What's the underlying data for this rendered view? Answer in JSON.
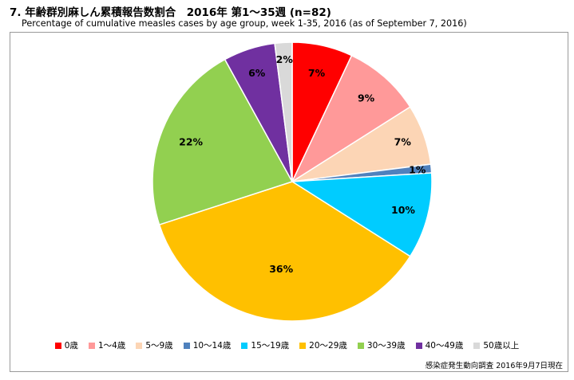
{
  "chart_data": {
    "type": "pie",
    "title": "7. 年齢群別麻しん累積報告数割合　2016年 第1～35週 (n=82)",
    "subtitle": "Percentage of cumulative measles cases by age group, week 1-35, 2016 (as of September 7, 2016)",
    "categories": [
      "0歳",
      "1～4歳",
      "5～9歳",
      "10～14歳",
      "15～19歳",
      "20～29歳",
      "30～39歳",
      "40～49歳",
      "50歳以上"
    ],
    "values": [
      7,
      9,
      7,
      1,
      10,
      36,
      22,
      6,
      2
    ],
    "data_labels": [
      "7%",
      "9%",
      "7%",
      "1%",
      "10%",
      "36%",
      "22%",
      "6%",
      "2%"
    ],
    "colors": [
      "#ff0000",
      "#ff9999",
      "#fcd5b5",
      "#4f81bd",
      "#00ccff",
      "#ffc000",
      "#92d050",
      "#7030a0",
      "#d9d9d9"
    ],
    "legend_position": "bottom",
    "source": "感染症発生動向調査 2016年9月7日現在"
  }
}
